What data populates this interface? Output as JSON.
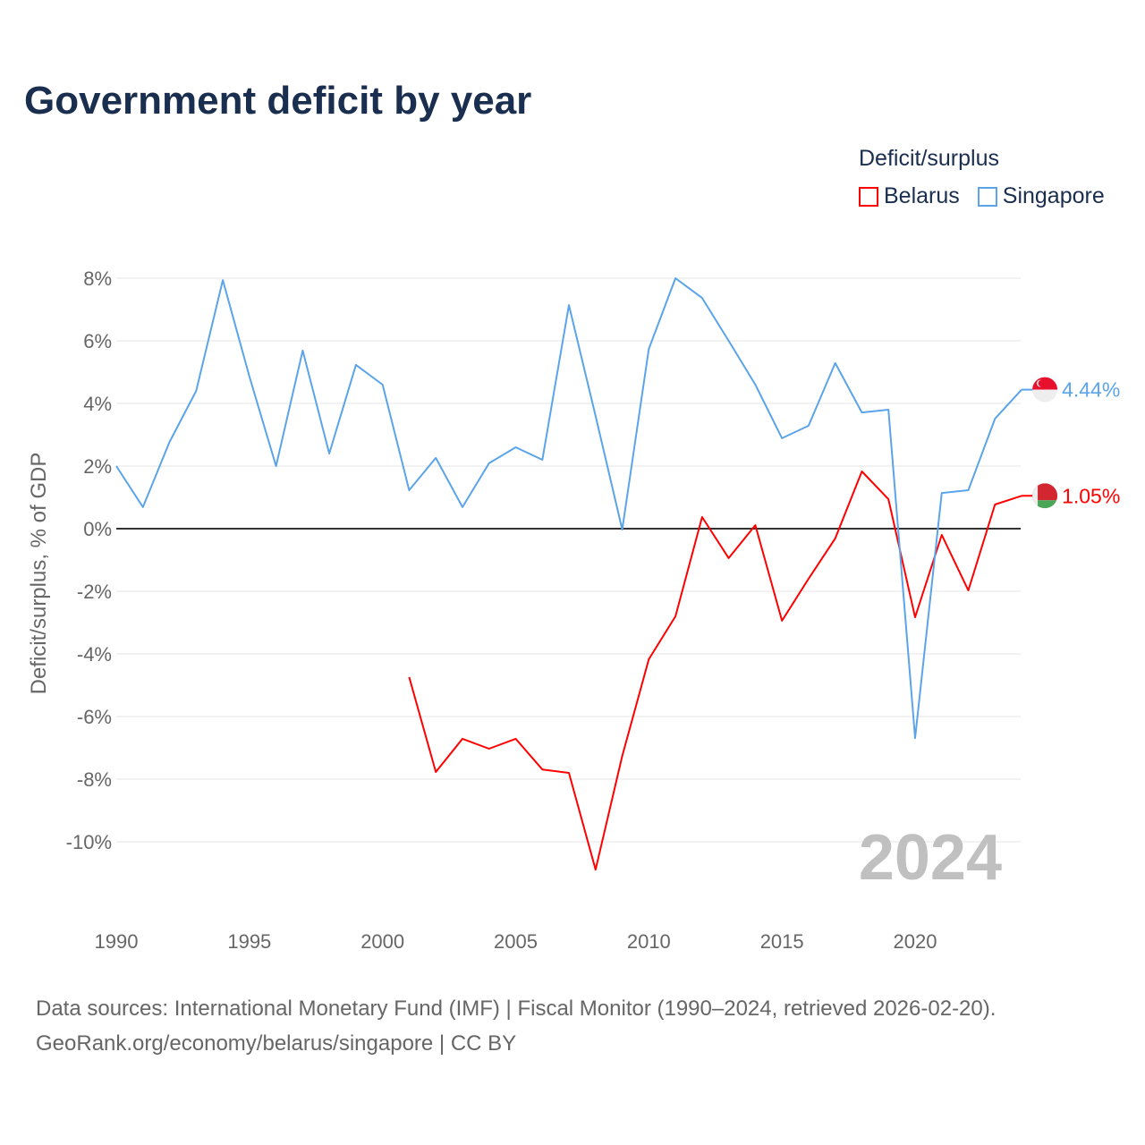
{
  "chart_data": {
    "type": "line",
    "title": "Government deficit by year",
    "ylabel": "Deficit/surplus, % of GDP",
    "xlabel": "",
    "legend_title": "Deficit/surplus",
    "legend_placement": "top-right",
    "ylim": [
      -12,
      8
    ],
    "xlim": [
      1990,
      2024
    ],
    "yticks": [
      8,
      6,
      4,
      2,
      0,
      -2,
      -4,
      -6,
      -8,
      -10
    ],
    "ytick_labels": [
      "8%",
      "6%",
      "4%",
      "2%",
      "0%",
      "-2%",
      "-4%",
      "-6%",
      "-8%",
      "-10%"
    ],
    "xticks": [
      1990,
      1995,
      2000,
      2005,
      2010,
      2015,
      2020
    ],
    "xtick_labels": [
      "1990",
      "1995",
      "2000",
      "2005",
      "2010",
      "2015",
      "2020"
    ],
    "grid": true,
    "year_watermark": "2024",
    "series": [
      {
        "name": "Belarus",
        "color": "#ff0000",
        "end_label": "1.05%",
        "x": [
          2001,
          2002,
          2003,
          2004,
          2005,
          2006,
          2007,
          2008,
          2009,
          2010,
          2011,
          2012,
          2013,
          2014,
          2015,
          2016,
          2017,
          2018,
          2019,
          2020,
          2021,
          2022,
          2023,
          2024
        ],
        "values": [
          -4.74,
          -7.77,
          -6.71,
          -7.03,
          -6.71,
          -7.69,
          -7.8,
          -10.89,
          -7.26,
          -4.17,
          -2.8,
          0.37,
          -0.94,
          0.11,
          -2.94,
          -1.6,
          -0.31,
          1.83,
          0.94,
          -2.83,
          -0.2,
          -1.97,
          0.77,
          1.05
        ]
      },
      {
        "name": "Singapore",
        "color": "#5ba4ea",
        "end_label": "4.44%",
        "x": [
          1990,
          1991,
          1992,
          1993,
          1994,
          1995,
          1996,
          1997,
          1998,
          1999,
          2000,
          2001,
          2002,
          2003,
          2004,
          2005,
          2006,
          2007,
          2008,
          2009,
          2010,
          2011,
          2012,
          2013,
          2014,
          2015,
          2016,
          2017,
          2018,
          2019,
          2020,
          2021,
          2022,
          2023,
          2024
        ],
        "values": [
          2.0,
          0.69,
          2.77,
          4.4,
          7.94,
          4.86,
          2.0,
          5.69,
          2.4,
          5.23,
          4.6,
          1.23,
          2.26,
          0.69,
          2.09,
          2.6,
          2.2,
          7.14,
          3.6,
          -0.03,
          5.74,
          8.0,
          7.37,
          6.0,
          4.6,
          2.89,
          3.29,
          5.29,
          3.71,
          3.8,
          -6.69,
          1.14,
          1.23,
          3.51,
          4.44
        ]
      }
    ]
  },
  "footer": {
    "line1": "Data sources: International Monetary Fund (IMF) | Fiscal Monitor (1990–2024, retrieved 2026-02-20).",
    "line2": "GeoRank.org/economy/belarus/singapore | CC BY"
  }
}
